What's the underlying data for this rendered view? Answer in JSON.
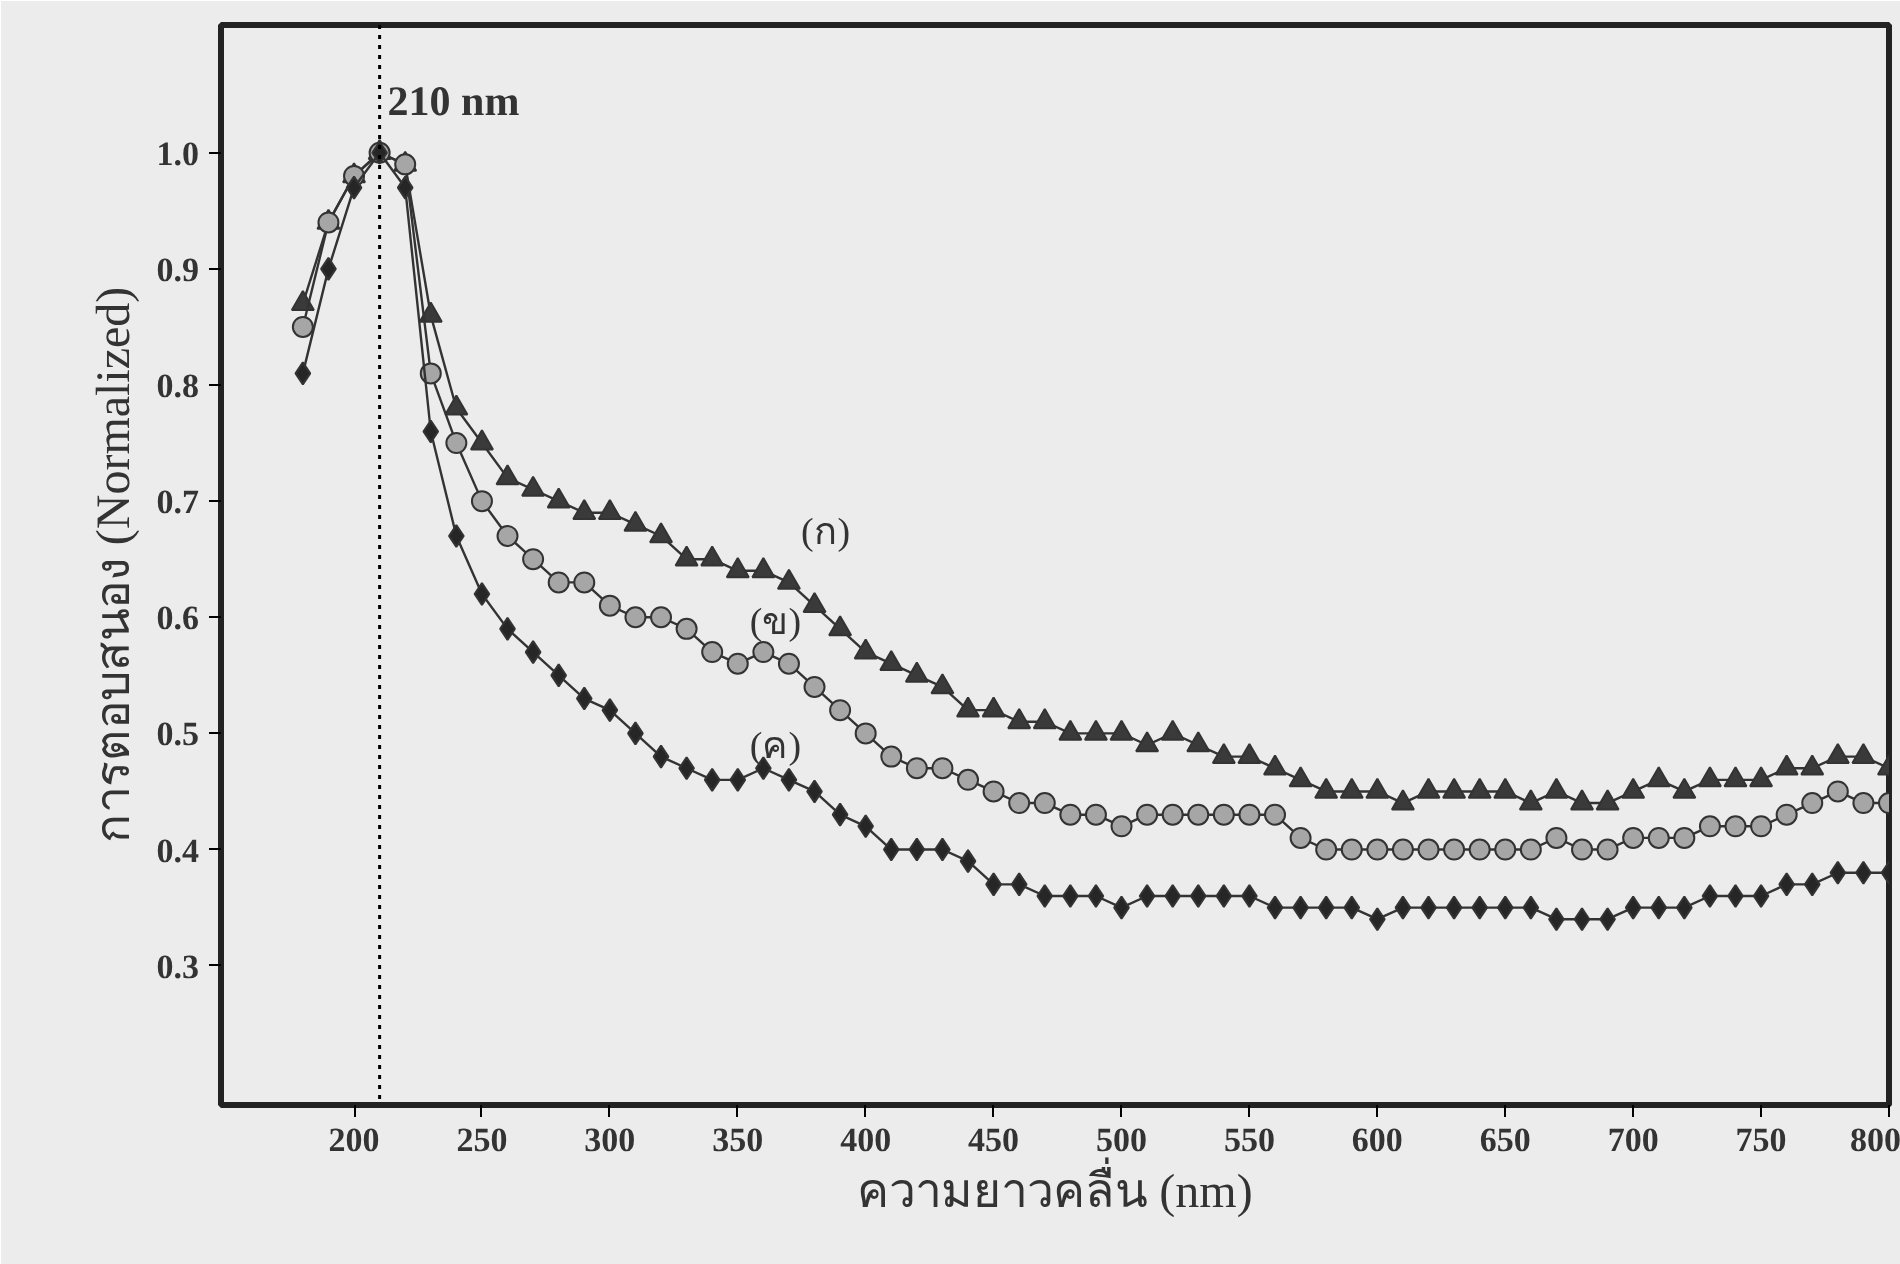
{
  "chart_data": {
    "type": "line",
    "xlabel": "ความยาวคลื่น (nm)",
    "ylabel": "การตอบสนอง (Normalized)",
    "x": [
      180,
      190,
      200,
      210,
      220,
      230,
      240,
      250,
      260,
      270,
      280,
      290,
      300,
      310,
      320,
      330,
      340,
      350,
      360,
      370,
      380,
      390,
      400,
      410,
      420,
      430,
      440,
      450,
      460,
      470,
      480,
      490,
      500,
      510,
      520,
      530,
      540,
      550,
      560,
      570,
      580,
      590,
      600,
      610,
      620,
      630,
      640,
      650,
      660,
      670,
      680,
      690,
      700,
      710,
      720,
      730,
      740,
      750,
      760,
      770,
      780,
      790,
      800
    ],
    "series": [
      {
        "name": "(ก)",
        "color": "#3a3a3a",
        "marker": "triangle",
        "values": [
          0.87,
          0.94,
          0.98,
          1.0,
          0.99,
          0.86,
          0.78,
          0.75,
          0.72,
          0.71,
          0.7,
          0.69,
          0.69,
          0.68,
          0.67,
          0.65,
          0.65,
          0.64,
          0.64,
          0.63,
          0.61,
          0.59,
          0.57,
          0.56,
          0.55,
          0.54,
          0.52,
          0.52,
          0.51,
          0.51,
          0.5,
          0.5,
          0.5,
          0.49,
          0.5,
          0.49,
          0.48,
          0.48,
          0.47,
          0.46,
          0.45,
          0.45,
          0.45,
          0.44,
          0.45,
          0.45,
          0.45,
          0.45,
          0.44,
          0.45,
          0.44,
          0.44,
          0.45,
          0.46,
          0.45,
          0.46,
          0.46,
          0.46,
          0.47,
          0.47,
          0.48,
          0.48,
          0.47
        ]
      },
      {
        "name": "(ข)",
        "color": "#a6a6a6",
        "marker": "circle",
        "values": [
          0.85,
          0.94,
          0.98,
          1.0,
          0.99,
          0.81,
          0.75,
          0.7,
          0.67,
          0.65,
          0.63,
          0.63,
          0.61,
          0.6,
          0.6,
          0.59,
          0.57,
          0.56,
          0.57,
          0.56,
          0.54,
          0.52,
          0.5,
          0.48,
          0.47,
          0.47,
          0.46,
          0.45,
          0.44,
          0.44,
          0.43,
          0.43,
          0.42,
          0.43,
          0.43,
          0.43,
          0.43,
          0.43,
          0.43,
          0.41,
          0.4,
          0.4,
          0.4,
          0.4,
          0.4,
          0.4,
          0.4,
          0.4,
          0.4,
          0.41,
          0.4,
          0.4,
          0.41,
          0.41,
          0.41,
          0.42,
          0.42,
          0.42,
          0.43,
          0.44,
          0.45,
          0.44,
          0.44
        ]
      },
      {
        "name": "(ค)",
        "color": "#262626",
        "marker": "diamond",
        "values": [
          0.81,
          0.9,
          0.97,
          1.0,
          0.97,
          0.76,
          0.67,
          0.62,
          0.59,
          0.57,
          0.55,
          0.53,
          0.52,
          0.5,
          0.48,
          0.47,
          0.46,
          0.46,
          0.47,
          0.46,
          0.45,
          0.43,
          0.42,
          0.4,
          0.4,
          0.4,
          0.39,
          0.37,
          0.37,
          0.36,
          0.36,
          0.36,
          0.35,
          0.36,
          0.36,
          0.36,
          0.36,
          0.36,
          0.35,
          0.35,
          0.35,
          0.35,
          0.34,
          0.35,
          0.35,
          0.35,
          0.35,
          0.35,
          0.35,
          0.34,
          0.34,
          0.34,
          0.35,
          0.35,
          0.35,
          0.36,
          0.36,
          0.36,
          0.37,
          0.37,
          0.38,
          0.38,
          0.38
        ]
      }
    ],
    "xlim": [
      148,
      800
    ],
    "ylim": [
      0.18,
      1.11
    ],
    "xticks": [
      200,
      250,
      300,
      350,
      400,
      450,
      500,
      550,
      600,
      650,
      700,
      750,
      800
    ],
    "yticks": [
      0.3,
      0.4,
      0.5,
      0.6,
      0.7,
      0.8,
      0.9,
      {
        "value": 1,
        "label": "1.0"
      }
    ],
    "ref_lines": [
      {
        "axis": "x",
        "value": 210,
        "line_style": "dotted",
        "color": "#000000"
      }
    ],
    "annotations": [
      {
        "text": "210 nm",
        "x": 210,
        "y": 1.0
      }
    ],
    "grid": false
  }
}
